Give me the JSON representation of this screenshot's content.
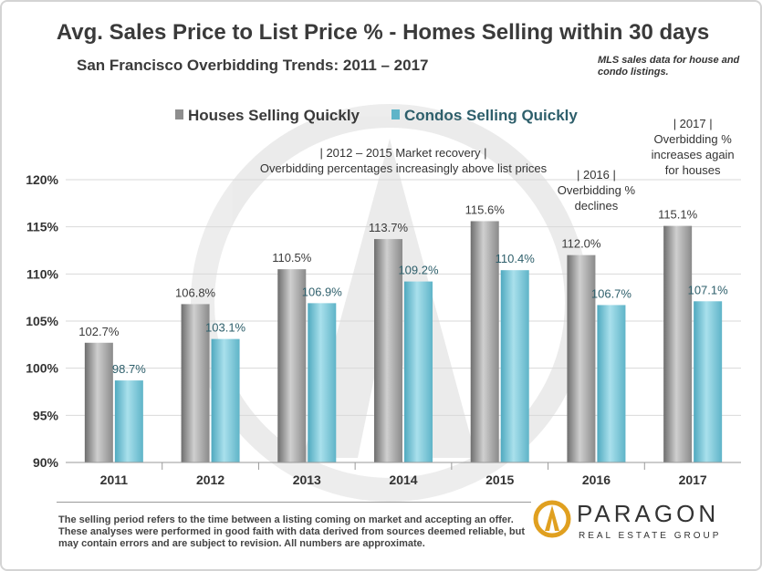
{
  "title": "Avg. Sales Price to List Price % - Homes Selling within 30 days",
  "subtitle": "San Francisco Overbidding Trends: 2011 – 2017",
  "source_note": "MLS sales data for house and condo listings.",
  "footer_note": "The selling period refers to the time between a listing coming on market and accepting an offer. These analyses were performed in good faith with data derived from sources deemed reliable, but may contain errors and are subject to revision. All numbers are approximate.",
  "logo": {
    "name": "PARAGON",
    "tagline": "REAL ESTATE GROUP"
  },
  "colors": {
    "houses": "#9e9e9e",
    "condos": "#7fc8d9",
    "grid": "#d9d9d9",
    "title": "#3a3a3a",
    "condo_label": "#2e5f6b"
  },
  "chart_data": {
    "type": "bar",
    "categories": [
      "2011",
      "2012",
      "2013",
      "2014",
      "2015",
      "2016",
      "2017"
    ],
    "series": [
      {
        "name": "Houses Selling Quickly",
        "values": [
          102.7,
          106.8,
          110.5,
          113.7,
          115.6,
          112.0,
          115.1
        ],
        "labels": [
          "102.7%",
          "106.8%",
          "110.5%",
          "113.7%",
          "115.6%",
          "112.0%",
          "115.1%"
        ]
      },
      {
        "name": "Condos Selling Quickly",
        "values": [
          98.7,
          103.1,
          106.9,
          109.2,
          110.4,
          106.7,
          107.1
        ],
        "labels": [
          "98.7%",
          "103.1%",
          "106.9%",
          "109.2%",
          "110.4%",
          "106.7%",
          "107.1%"
        ]
      }
    ],
    "ylim": [
      90,
      120
    ],
    "yticks": [
      90,
      95,
      100,
      105,
      110,
      115,
      120
    ],
    "ytick_labels": [
      "90%",
      "95%",
      "100%",
      "105%",
      "110%",
      "115%",
      "120%"
    ],
    "grid": true,
    "legend_position": "top",
    "annotations": [
      {
        "lines": [
          "|     2012 – 2015  Market recovery     |",
          "Overbidding  percentages  increasingly above  list prices"
        ],
        "anchor_category": 3.0
      },
      {
        "lines": [
          "|     2016     |",
          "Overbidding  %",
          "declines"
        ],
        "anchor_category": 5
      },
      {
        "lines": [
          "|     2017     |",
          "Overbidding  %",
          "increases again",
          "for houses"
        ],
        "anchor_category": 6
      }
    ]
  }
}
